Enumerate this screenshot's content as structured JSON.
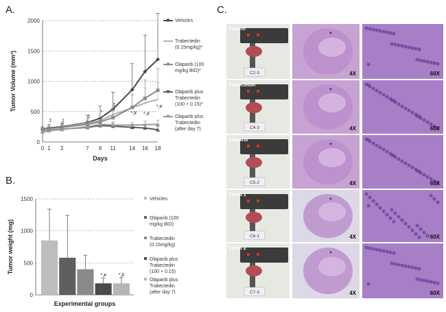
{
  "panels": {
    "a": "A.",
    "b": "B.",
    "c": "C."
  },
  "chart_data": [
    {
      "type": "line",
      "ylabel": "Tumor Volume (mm³)",
      "xlabel": "Days",
      "ylim": [
        0,
        2000
      ],
      "yticks": [
        "0",
        "500",
        "1000",
        "1500",
        "2000"
      ],
      "x": [
        0,
        1,
        3,
        7,
        9,
        11,
        14,
        16,
        18
      ],
      "xticks": [
        "0",
        "1",
        "3",
        "7",
        "9",
        "11",
        "14",
        "16",
        "18"
      ],
      "series": [
        {
          "name": "Vehicles",
          "color": "#4a4a4a",
          "values": [
            210,
            230,
            250,
            320,
            390,
            540,
            860,
            1160,
            1360
          ],
          "errors": [
            40,
            60,
            60,
            120,
            200,
            280,
            430,
            600,
            760
          ]
        },
        {
          "name": "Trabectedin (0.15mg/kg)*",
          "color": "#b0b0b0",
          "values": [
            200,
            215,
            240,
            310,
            350,
            450,
            560,
            640,
            700
          ],
          "errors": [
            30,
            40,
            40,
            70,
            90,
            130,
            200,
            250,
            280
          ]
        },
        {
          "name": "Olaparib (100 mg/kg BID)*",
          "color": "#8a8a8a",
          "values": [
            205,
            220,
            240,
            290,
            330,
            400,
            570,
            720,
            850
          ],
          "errors": [
            30,
            40,
            40,
            70,
            80,
            120,
            220,
            300,
            360
          ]
        },
        {
          "name": "Olaparib plus Trabectedin (100 + 0.15)*",
          "color": "#5a5a5a",
          "values": [
            170,
            190,
            210,
            240,
            270,
            260,
            240,
            230,
            200
          ],
          "errors": [
            20,
            30,
            30,
            40,
            40,
            50,
            50,
            60,
            60
          ]
        },
        {
          "name": "Olaparib plus Trabectedin (after day 7)",
          "color": "#9a9a9a",
          "values": [
            165,
            185,
            205,
            250,
            290,
            280,
            275,
            285,
            290
          ],
          "errors": [
            20,
            30,
            30,
            40,
            50,
            50,
            50,
            60,
            70
          ]
        }
      ],
      "annotations": [
        "‡",
        "*",
        "‡",
        "‡",
        "*",
        "‡",
        "*",
        "*,#",
        "*,#",
        "*,#"
      ]
    },
    {
      "type": "bar",
      "ylabel": "Tumor weight (mg)",
      "xlabel": "Experimental groups",
      "ylim": [
        0,
        1500
      ],
      "yticks": [
        "0",
        "500",
        "1000",
        "1500"
      ],
      "categories": [
        "Vehicles",
        "Olaparib (100 mg/kg  BID)",
        "Trabectedin (0.15mg/kg)",
        "Olaparib plus Trabectedin (100 + 0.15)",
        "Olaparib plus Trabectedin (after day 7)"
      ],
      "values": [
        850,
        580,
        400,
        180,
        180
      ],
      "errors": [
        490,
        660,
        220,
        80,
        90
      ],
      "colors": [
        "#bdbdbd",
        "#5f5f5f",
        "#8a8a8a",
        "#4a4a4a",
        "#b5b5b5"
      ],
      "bar_labels": [
        "",
        "",
        "",
        "*,#",
        "*,#"
      ]
    }
  ],
  "histology": {
    "rows": [
      {
        "group": "Control",
        "sample": "C2-3",
        "magnifications": [
          "4X",
          "60X"
        ]
      },
      {
        "group": "Trabectedin",
        "sample": "C4-3",
        "magnifications": [
          "4X",
          "60X"
        ]
      },
      {
        "group": "Olaparib",
        "sample": "C5-2",
        "magnifications": [
          "4X",
          "60X"
        ]
      },
      {
        "group": "Comb 1",
        "sample": "C6-1",
        "magnifications": [
          "4X",
          "60X"
        ]
      },
      {
        "group": "Comb 2",
        "sample": "C7-3",
        "magnifications": [
          "4X",
          "60X"
        ]
      }
    ]
  }
}
